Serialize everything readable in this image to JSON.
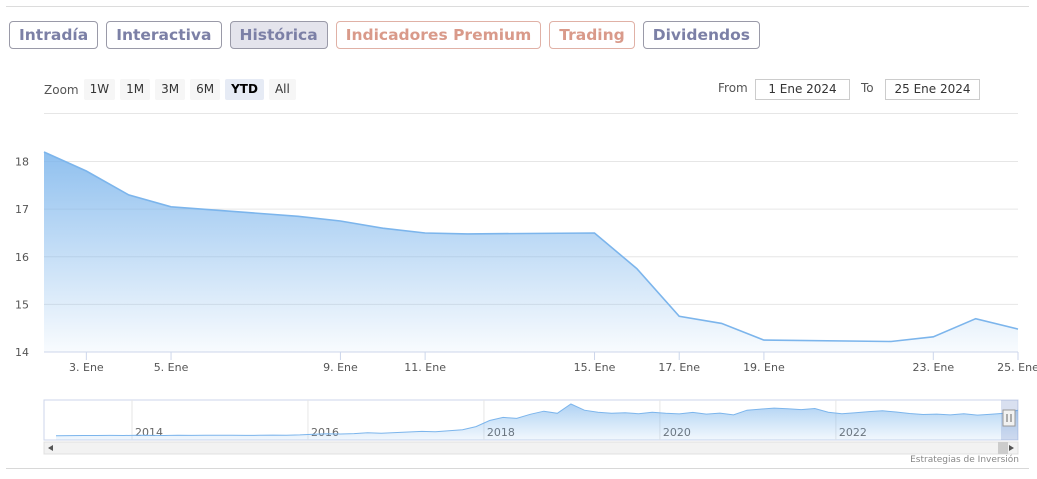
{
  "tabs": [
    {
      "label": "Intradía",
      "style": "blue"
    },
    {
      "label": "Interactiva",
      "style": "blue"
    },
    {
      "label": "Histórica",
      "style": "active"
    },
    {
      "label": "Indicadores Premium",
      "style": "salmon"
    },
    {
      "label": "Trading",
      "style": "salmon"
    },
    {
      "label": "Dividendos",
      "style": "blue"
    }
  ],
  "zoom": {
    "label": "Zoom",
    "buttons": [
      "1W",
      "1M",
      "3M",
      "6M",
      "YTD",
      "All"
    ],
    "selected": "YTD"
  },
  "range": {
    "from_label": "From",
    "from_value": "1 Ene 2024",
    "to_label": "To",
    "to_value": "25 Ene 2024"
  },
  "credit": "Estrategias de Inversión",
  "colors": {
    "line": "#7cb5ec",
    "fill_top": "#7cb5ec",
    "grid": "#e6e6e6"
  },
  "chart_data": {
    "type": "area",
    "x": [
      "2024-01-02",
      "2024-01-03",
      "2024-01-04",
      "2024-01-05",
      "2024-01-08",
      "2024-01-09",
      "2024-01-10",
      "2024-01-11",
      "2024-01-12",
      "2024-01-15",
      "2024-01-16",
      "2024-01-17",
      "2024-01-18",
      "2024-01-19",
      "2024-01-22",
      "2024-01-23",
      "2024-01-24",
      "2024-01-25"
    ],
    "series": [
      {
        "values": [
          18.2,
          17.8,
          17.3,
          17.05,
          16.85,
          16.75,
          16.6,
          16.5,
          16.48,
          16.5,
          15.75,
          14.75,
          14.6,
          14.25,
          14.22,
          14.32,
          14.7,
          14.48
        ]
      }
    ],
    "x_ticks": [
      {
        "date": "2024-01-03",
        "label": "3. Ene"
      },
      {
        "date": "2024-01-05",
        "label": "5. Ene"
      },
      {
        "date": "2024-01-09",
        "label": "9. Ene"
      },
      {
        "date": "2024-01-11",
        "label": "11. Ene"
      },
      {
        "date": "2024-01-15",
        "label": "15. Ene"
      },
      {
        "date": "2024-01-17",
        "label": "17. Ene"
      },
      {
        "date": "2024-01-19",
        "label": "19. Ene"
      },
      {
        "date": "2024-01-23",
        "label": "23. Ene"
      },
      {
        "date": "2024-01-25",
        "label": "25. Ene"
      }
    ],
    "y_ticks": [
      14,
      15,
      16,
      17,
      18
    ],
    "ylim": [
      14,
      18.2
    ],
    "grid": true,
    "navigator": {
      "year_labels": [
        "2014",
        "2016",
        "2018",
        "2020",
        "2022"
      ],
      "x_range": [
        2013,
        2024.07
      ],
      "values": [
        2.1,
        2.15,
        2.2,
        2.2,
        2.25,
        2.2,
        2.3,
        2.25,
        2.2,
        2.3,
        2.25,
        2.3,
        2.35,
        2.3,
        2.25,
        2.3,
        2.4,
        2.35,
        2.5,
        2.8,
        3.0,
        2.9,
        3.1,
        3.5,
        3.3,
        3.6,
        3.9,
        4.2,
        4.0,
        4.5,
        5.0,
        6.5,
        9.5,
        11.0,
        10.5,
        12.5,
        14.0,
        13.0,
        17.5,
        14.5,
        13.5,
        13.0,
        13.2,
        12.8,
        13.5,
        13.0,
        12.7,
        13.4,
        12.6,
        13.1,
        12.2,
        14.5,
        15.0,
        15.5,
        15.2,
        14.8,
        15.3,
        13.5,
        12.8,
        13.2,
        13.8,
        14.2,
        13.6,
        12.9,
        12.4,
        12.6,
        12.2,
        12.8,
        12.1,
        12.5,
        13.0,
        14.5
      ]
    }
  }
}
